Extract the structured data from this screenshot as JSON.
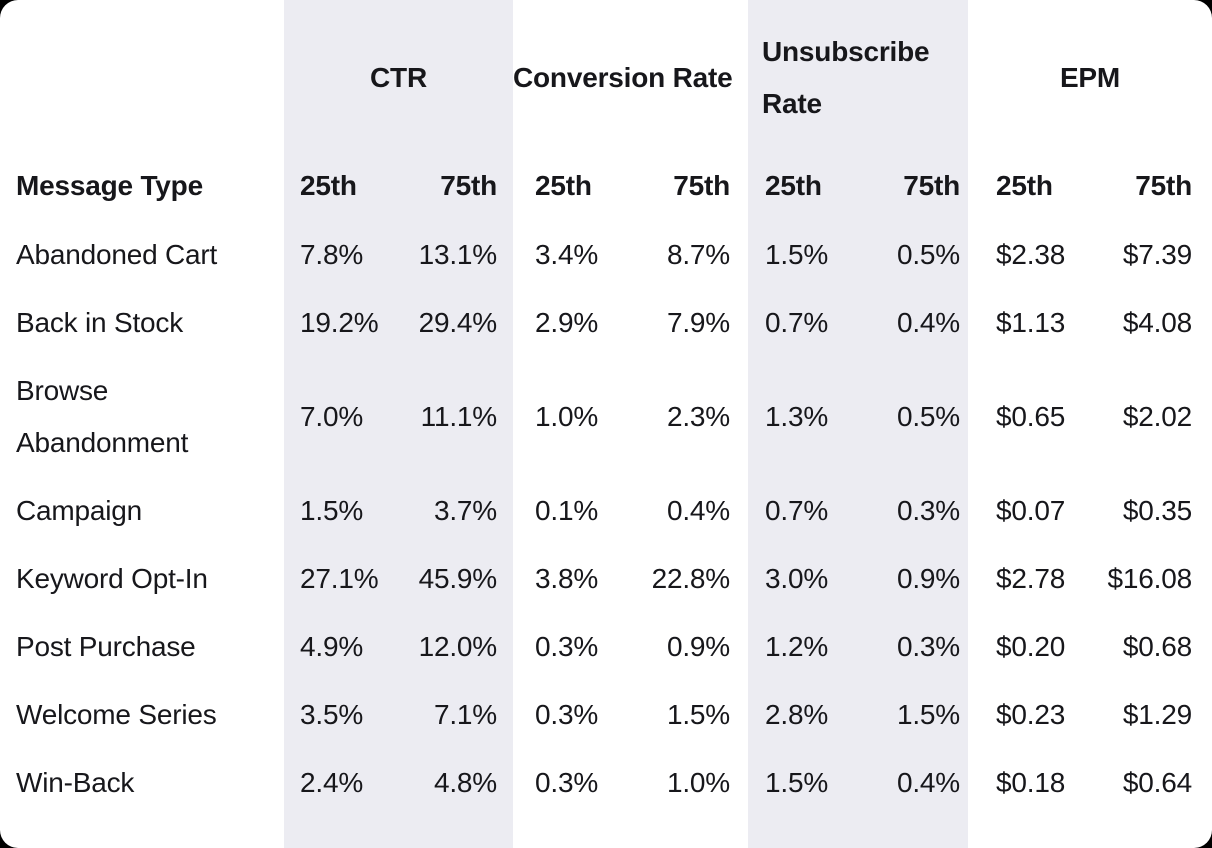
{
  "colors": {
    "page_background": "#000000",
    "card_background": "#ffffff",
    "band_background": "#ececf2",
    "text": "#17171b"
  },
  "table": {
    "corner_header": "Message Type",
    "groups": [
      {
        "label": "CTR"
      },
      {
        "label": "Conversion Rate"
      },
      {
        "label": "Unsubscribe Rate"
      },
      {
        "label": "EPM"
      }
    ],
    "sub_headers": [
      "25th",
      "75th"
    ],
    "rows": [
      {
        "label": "Abandoned Cart",
        "values": [
          "7.8%",
          "13.1%",
          "3.4%",
          "8.7%",
          "1.5%",
          "0.5%",
          "$2.38",
          "$7.39"
        ]
      },
      {
        "label": "Back in Stock",
        "values": [
          "19.2%",
          "29.4%",
          "2.9%",
          "7.9%",
          "0.7%",
          "0.4%",
          "$1.13",
          "$4.08"
        ]
      },
      {
        "label": "Browse Abandonment",
        "values": [
          "7.0%",
          "11.1%",
          "1.0%",
          "2.3%",
          "1.3%",
          "0.5%",
          "$0.65",
          "$2.02"
        ]
      },
      {
        "label": "Campaign",
        "values": [
          "1.5%",
          "3.7%",
          "0.1%",
          "0.4%",
          "0.7%",
          "0.3%",
          "$0.07",
          "$0.35"
        ]
      },
      {
        "label": "Keyword Opt-In",
        "values": [
          "27.1%",
          "45.9%",
          "3.8%",
          "22.8%",
          "3.0%",
          "0.9%",
          "$2.78",
          "$16.08"
        ]
      },
      {
        "label": "Post Purchase",
        "values": [
          "4.9%",
          "12.0%",
          "0.3%",
          "0.9%",
          "1.2%",
          "0.3%",
          "$0.20",
          "$0.68"
        ]
      },
      {
        "label": "Welcome Series",
        "values": [
          "3.5%",
          "7.1%",
          "0.3%",
          "1.5%",
          "2.8%",
          "1.5%",
          "$0.23",
          "$1.29"
        ]
      },
      {
        "label": "Win-Back",
        "values": [
          "2.4%",
          "4.8%",
          "0.3%",
          "1.0%",
          "1.5%",
          "0.4%",
          "$0.18",
          "$0.64"
        ]
      }
    ]
  },
  "chart_data": {
    "type": "table",
    "title": "",
    "row_header": "Message Type",
    "column_groups": [
      "CTR",
      "Conversion Rate",
      "Unsubscribe Rate",
      "EPM"
    ],
    "percentiles_per_group": [
      "25th",
      "75th"
    ],
    "rows": [
      {
        "message_type": "Abandoned Cart",
        "ctr_25th": "7.8%",
        "ctr_75th": "13.1%",
        "conversion_rate_25th": "3.4%",
        "conversion_rate_75th": "8.7%",
        "unsubscribe_rate_25th": "1.5%",
        "unsubscribe_rate_75th": "0.5%",
        "epm_25th": "$2.38",
        "epm_75th": "$7.39"
      },
      {
        "message_type": "Back in Stock",
        "ctr_25th": "19.2%",
        "ctr_75th": "29.4%",
        "conversion_rate_25th": "2.9%",
        "conversion_rate_75th": "7.9%",
        "unsubscribe_rate_25th": "0.7%",
        "unsubscribe_rate_75th": "0.4%",
        "epm_25th": "$1.13",
        "epm_75th": "$4.08"
      },
      {
        "message_type": "Browse Abandonment",
        "ctr_25th": "7.0%",
        "ctr_75th": "11.1%",
        "conversion_rate_25th": "1.0%",
        "conversion_rate_75th": "2.3%",
        "unsubscribe_rate_25th": "1.3%",
        "unsubscribe_rate_75th": "0.5%",
        "epm_25th": "$0.65",
        "epm_75th": "$2.02"
      },
      {
        "message_type": "Campaign",
        "ctr_25th": "1.5%",
        "ctr_75th": "3.7%",
        "conversion_rate_25th": "0.1%",
        "conversion_rate_75th": "0.4%",
        "unsubscribe_rate_25th": "0.7%",
        "unsubscribe_rate_75th": "0.3%",
        "epm_25th": "$0.07",
        "epm_75th": "$0.35"
      },
      {
        "message_type": "Keyword Opt-In",
        "ctr_25th": "27.1%",
        "ctr_75th": "45.9%",
        "conversion_rate_25th": "3.8%",
        "conversion_rate_75th": "22.8%",
        "unsubscribe_rate_25th": "3.0%",
        "unsubscribe_rate_75th": "0.9%",
        "epm_25th": "$2.78",
        "epm_75th": "$16.08"
      },
      {
        "message_type": "Post Purchase",
        "ctr_25th": "4.9%",
        "ctr_75th": "12.0%",
        "conversion_rate_25th": "0.3%",
        "conversion_rate_75th": "0.9%",
        "unsubscribe_rate_25th": "1.2%",
        "unsubscribe_rate_75th": "0.3%",
        "epm_25th": "$0.20",
        "epm_75th": "$0.68"
      },
      {
        "message_type": "Welcome Series",
        "ctr_25th": "3.5%",
        "ctr_75th": "7.1%",
        "conversion_rate_25th": "0.3%",
        "conversion_rate_75th": "1.5%",
        "unsubscribe_rate_25th": "2.8%",
        "unsubscribe_rate_75th": "1.5%",
        "epm_25th": "$0.23",
        "epm_75th": "$1.29"
      },
      {
        "message_type": "Win-Back",
        "ctr_25th": "2.4%",
        "ctr_75th": "4.8%",
        "conversion_rate_25th": "0.3%",
        "conversion_rate_75th": "1.0%",
        "unsubscribe_rate_25th": "1.5%",
        "unsubscribe_rate_75th": "0.4%",
        "epm_25th": "$0.18",
        "epm_75th": "$0.64"
      }
    ]
  }
}
